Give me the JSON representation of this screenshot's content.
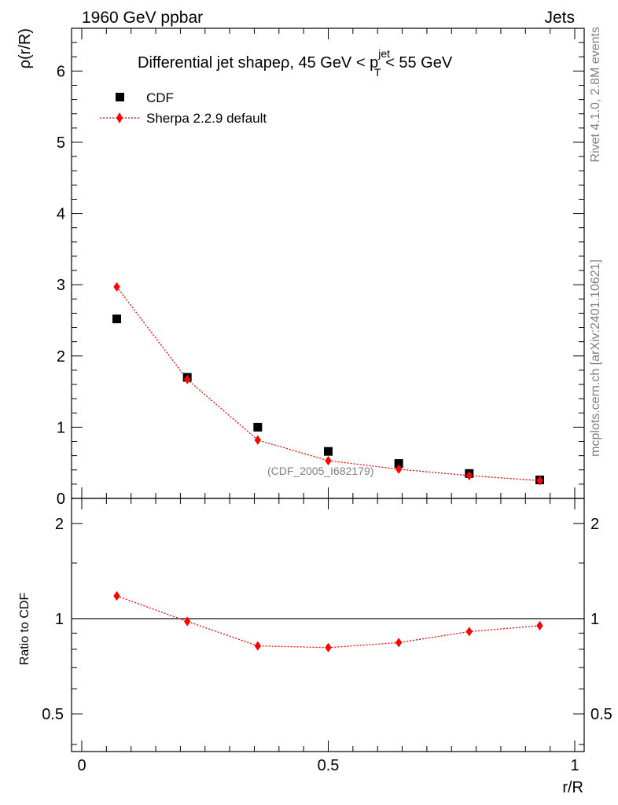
{
  "header": {
    "left_label": "1960 GeV ppbar",
    "right_label": "Jets",
    "side_rivet": "Rivet 4.1.0,  2.8M events",
    "side_mcplots": "mcplots.cern.ch [arXiv:2401.10621]"
  },
  "chart_data": [
    {
      "type": "scatter",
      "panel": "main",
      "title_main": "Differential jet shapeρ, 45 GeV < p",
      "title_sup": "jet",
      "title_sub": "T",
      "title_tail": " < 55 GeV",
      "ylabel": "ρ(r/R)",
      "xlim": [
        0,
        1
      ],
      "ylim": [
        0,
        6.6
      ],
      "yticks": [
        0,
        1,
        2,
        3,
        4,
        5,
        6
      ],
      "ytick_labels": [
        "0",
        "1",
        "2",
        "3",
        "4",
        "5",
        "6"
      ],
      "watermark": "(CDF_2005_I682179)",
      "legend": [
        {
          "label": "CDF",
          "marker": "square",
          "color": "#000000"
        },
        {
          "label": "Sherpa 2.2.9 default",
          "marker": "diamond",
          "color": "#ff0000"
        }
      ],
      "x": [
        0.071,
        0.214,
        0.357,
        0.5,
        0.643,
        0.786,
        0.929
      ],
      "series": [
        {
          "name": "CDF",
          "values": [
            2.52,
            1.7,
            1.0,
            0.66,
            0.49,
            0.35,
            0.26
          ]
        },
        {
          "name": "Sherpa 2.2.9 default",
          "values": [
            2.97,
            1.67,
            0.82,
            0.53,
            0.41,
            0.32,
            0.25
          ]
        }
      ]
    },
    {
      "type": "line",
      "panel": "ratio",
      "ylabel": "Ratio to CDF",
      "xlabel": "r/R",
      "xlim": [
        0,
        1
      ],
      "ylog": true,
      "ylim": [
        0.38,
        2.4
      ],
      "yticks": [
        0.5,
        1,
        2
      ],
      "ytick_labels": [
        "0.5",
        "1",
        "2"
      ],
      "xticks": [
        0,
        0.5,
        1
      ],
      "xtick_labels": [
        "0",
        "0.5",
        "1"
      ],
      "reference": 1,
      "x": [
        0.071,
        0.214,
        0.357,
        0.5,
        0.643,
        0.786,
        0.929
      ],
      "series": [
        {
          "name": "Sherpa 2.2.9 default",
          "values": [
            1.18,
            0.98,
            0.82,
            0.81,
            0.84,
            0.91,
            0.95
          ]
        }
      ]
    }
  ]
}
